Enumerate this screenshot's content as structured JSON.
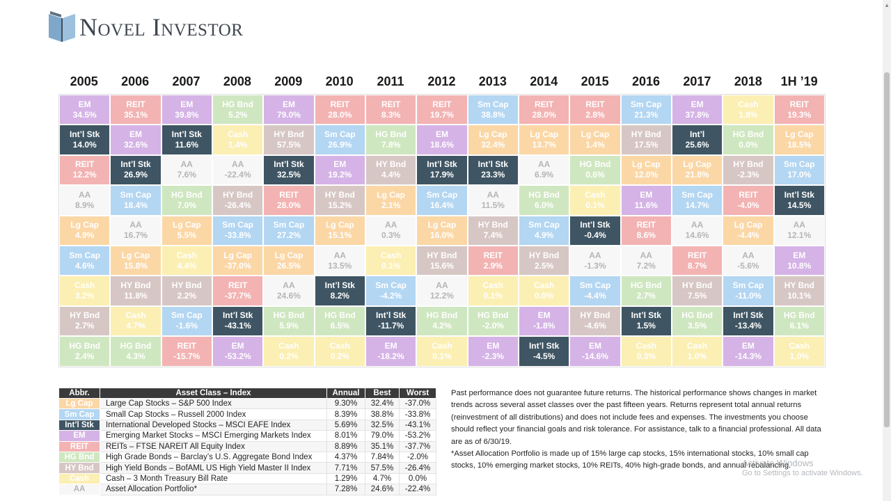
{
  "brand": {
    "name": "Novel Investor"
  },
  "years": [
    "2005",
    "2006",
    "2007",
    "2008",
    "2009",
    "2010",
    "2011",
    "2012",
    "2013",
    "2014",
    "2015",
    "2016",
    "2017",
    "2018",
    "1H ’19"
  ],
  "grid": [
    [
      [
        "EM",
        "34.5%",
        "em"
      ],
      [
        "REIT",
        "35.1%",
        "reit"
      ],
      [
        "EM",
        "39.8%",
        "em"
      ],
      [
        "HG Bnd",
        "5.2%",
        "hg"
      ],
      [
        "EM",
        "79.0%",
        "em"
      ],
      [
        "REIT",
        "28.0%",
        "reit"
      ],
      [
        "REIT",
        "8.3%",
        "reit"
      ],
      [
        "REIT",
        "19.7%",
        "reit"
      ],
      [
        "Sm Cap",
        "38.8%",
        "sm"
      ],
      [
        "REIT",
        "28.0%",
        "reit"
      ],
      [
        "REIT",
        "2.8%",
        "reit"
      ],
      [
        "Sm Cap",
        "21.3%",
        "sm"
      ],
      [
        "EM",
        "37.8%",
        "em"
      ],
      [
        "Cash",
        "1.8%",
        "cash"
      ],
      [
        "REIT",
        "19.3%",
        "reit"
      ]
    ],
    [
      [
        "Int’l Stk",
        "14.0%",
        "intl"
      ],
      [
        "EM",
        "32.6%",
        "em"
      ],
      [
        "Int’l Stk",
        "11.6%",
        "intl"
      ],
      [
        "Cash",
        "1.4%",
        "cash"
      ],
      [
        "HY Bnd",
        "57.5%",
        "hy"
      ],
      [
        "Sm Cap",
        "26.9%",
        "sm"
      ],
      [
        "HG Bnd",
        "7.8%",
        "hg"
      ],
      [
        "EM",
        "18.6%",
        "em"
      ],
      [
        "Lg Cap",
        "32.4%",
        "lg"
      ],
      [
        "Lg Cap",
        "13.7%",
        "lg"
      ],
      [
        "Lg Cap",
        "1.4%",
        "lg"
      ],
      [
        "HY Bnd",
        "17.5%",
        "hy"
      ],
      [
        "Int’l",
        "25.6%",
        "intl"
      ],
      [
        "HG Bnd",
        "0.0%",
        "hg"
      ],
      [
        "Lg Cap",
        "18.5%",
        "lg"
      ]
    ],
    [
      [
        "REIT",
        "12.2%",
        "reit"
      ],
      [
        "Int’l Stk",
        "26.9%",
        "intl"
      ],
      [
        "AA",
        "7.6%",
        "aa"
      ],
      [
        "AA",
        "-22.4%",
        "aa"
      ],
      [
        "Int’l Stk",
        "32.5%",
        "intl"
      ],
      [
        "EM",
        "19.2%",
        "em"
      ],
      [
        "HY Bnd",
        "4.4%",
        "hy"
      ],
      [
        "Int’l Stk",
        "17.9%",
        "intl"
      ],
      [
        "Int’l Stk",
        "23.3%",
        "intl"
      ],
      [
        "AA",
        "6.9%",
        "aa"
      ],
      [
        "HG Bnd",
        "0.6%",
        "hg"
      ],
      [
        "Lg Cap",
        "12.0%",
        "lg"
      ],
      [
        "Lg Cap",
        "21.8%",
        "lg"
      ],
      [
        "HY Bnd",
        "-2.3%",
        "hy"
      ],
      [
        "Sm Cap",
        "17.0%",
        "sm"
      ]
    ],
    [
      [
        "AA",
        "8.9%",
        "aa"
      ],
      [
        "Sm Cap",
        "18.4%",
        "sm"
      ],
      [
        "HG Bnd",
        "7.0%",
        "hg"
      ],
      [
        "HY Bnd",
        "-26.4%",
        "hy"
      ],
      [
        "REIT",
        "28.0%",
        "reit"
      ],
      [
        "HY Bnd",
        "15.2%",
        "hy"
      ],
      [
        "Lg Cap",
        "2.1%",
        "lg"
      ],
      [
        "Sm Cap",
        "16.4%",
        "sm"
      ],
      [
        "AA",
        "11.5%",
        "aa"
      ],
      [
        "HG Bnd",
        "6.0%",
        "hg"
      ],
      [
        "Cash",
        "0.1%",
        "cash"
      ],
      [
        "EM",
        "11.6%",
        "em"
      ],
      [
        "Sm Cap",
        "14.7%",
        "sm"
      ],
      [
        "REIT",
        "-4.0%",
        "reit"
      ],
      [
        "Int’l Stk",
        "14.5%",
        "intl"
      ]
    ],
    [
      [
        "Lg Cap",
        "4.9%",
        "lg"
      ],
      [
        "AA",
        "16.7%",
        "aa"
      ],
      [
        "Lg Cap",
        "5.5%",
        "lg"
      ],
      [
        "Sm Cap",
        "-33.8%",
        "sm"
      ],
      [
        "Sm Cap",
        "27.2%",
        "sm"
      ],
      [
        "Lg Cap",
        "15.1%",
        "lg"
      ],
      [
        "AA",
        "0.3%",
        "aa"
      ],
      [
        "Lg Cap",
        "16.0%",
        "lg"
      ],
      [
        "HY Bnd",
        "7.4%",
        "hy"
      ],
      [
        "Sm Cap",
        "4.9%",
        "sm"
      ],
      [
        "Int’l Stk",
        "-0.4%",
        "intl"
      ],
      [
        "REIT",
        "8.6%",
        "reit"
      ],
      [
        "AA",
        "14.6%",
        "aa"
      ],
      [
        "Lg Cap",
        "-4.4%",
        "lg"
      ],
      [
        "AA",
        "12.1%",
        "aa"
      ]
    ],
    [
      [
        "Sm Cap",
        "4.6%",
        "sm"
      ],
      [
        "Lg Cap",
        "15.8%",
        "lg"
      ],
      [
        "Cash",
        "4.4%",
        "cash"
      ],
      [
        "Lg Cap",
        "-37.0%",
        "lg"
      ],
      [
        "Lg Cap",
        "26.5%",
        "lg"
      ],
      [
        "AA",
        "13.5%",
        "aa"
      ],
      [
        "Cash",
        "0.1%",
        "cash"
      ],
      [
        "HY Bnd",
        "15.6%",
        "hy"
      ],
      [
        "REIT",
        "2.9%",
        "reit"
      ],
      [
        "HY Bnd",
        "2.5%",
        "hy"
      ],
      [
        "AA",
        "-1.3%",
        "aa"
      ],
      [
        "AA",
        "7.2%",
        "aa"
      ],
      [
        "REIT",
        "8.7%",
        "reit"
      ],
      [
        "AA",
        "-5.6%",
        "aa"
      ],
      [
        "EM",
        "10.8%",
        "em"
      ]
    ],
    [
      [
        "Cash",
        "3.2%",
        "cash"
      ],
      [
        "HY Bnd",
        "11.8%",
        "hy"
      ],
      [
        "HY Bnd",
        "2.2%",
        "hy"
      ],
      [
        "REIT",
        "-37.7%",
        "reit"
      ],
      [
        "AA",
        "24.6%",
        "aa"
      ],
      [
        "Int’l Stk",
        "8.2%",
        "intl"
      ],
      [
        "Sm Cap",
        "-4.2%",
        "sm"
      ],
      [
        "AA",
        "12.2%",
        "aa"
      ],
      [
        "Cash",
        "0.1%",
        "cash"
      ],
      [
        "Cash",
        "0.0%",
        "cash"
      ],
      [
        "Sm Cap",
        "-4.4%",
        "sm"
      ],
      [
        "HG Bnd",
        "2.7%",
        "hg"
      ],
      [
        "HY Bnd",
        "7.5%",
        "hy"
      ],
      [
        "Sm Cap",
        "-11.0%",
        "sm"
      ],
      [
        "HY Bnd",
        "10.1%",
        "hy"
      ]
    ],
    [
      [
        "HY Bnd",
        "2.7%",
        "hy"
      ],
      [
        "Cash",
        "4.7%",
        "cash"
      ],
      [
        "Sm Cap",
        "-1.6%",
        "sm"
      ],
      [
        "Int’l Stk",
        "-43.1%",
        "intl"
      ],
      [
        "HG Bnd",
        "5.9%",
        "hg"
      ],
      [
        "HG Bnd",
        "6.5%",
        "hg"
      ],
      [
        "Int’l Stk",
        "-11.7%",
        "intl"
      ],
      [
        "HG Bnd",
        "4.2%",
        "hg"
      ],
      [
        "HG Bnd",
        "-2.0%",
        "hg"
      ],
      [
        "EM",
        "-1.8%",
        "em"
      ],
      [
        "HY Bnd",
        "-4.6%",
        "hy"
      ],
      [
        "Int’l Stk",
        "1.5%",
        "intl"
      ],
      [
        "HG Bnd",
        "3.5%",
        "hg"
      ],
      [
        "Int’l Stk",
        "-13.4%",
        "intl"
      ],
      [
        "HG Bnd",
        "6.1%",
        "hg"
      ]
    ],
    [
      [
        "HG Bnd",
        "2.4%",
        "hg"
      ],
      [
        "HG Bnd",
        "4.3%",
        "hg"
      ],
      [
        "REIT",
        "-15.7%",
        "reit"
      ],
      [
        "EM",
        "-53.2%",
        "em"
      ],
      [
        "Cash",
        "0.2%",
        "cash"
      ],
      [
        "Cash",
        "0.2%",
        "cash"
      ],
      [
        "EM",
        "-18.2%",
        "em"
      ],
      [
        "Cash",
        "0.1%",
        "cash"
      ],
      [
        "EM",
        "-2.3%",
        "em"
      ],
      [
        "Int’l Stk",
        "-4.5%",
        "intl"
      ],
      [
        "EM",
        "-14.6%",
        "em"
      ],
      [
        "Cash",
        "0.3%",
        "cash"
      ],
      [
        "Cash",
        "1.0%",
        "cash"
      ],
      [
        "EM",
        "-14.3%",
        "em"
      ],
      [
        "Cash",
        "1.0%",
        "cash"
      ]
    ]
  ],
  "legend": {
    "headers": [
      "Abbr.",
      "Asset Class – Index",
      "Annual",
      "Best",
      "Worst"
    ],
    "rows": [
      [
        "Lg Cap",
        "Large Cap Stocks – S&P 500 Index",
        "9.30%",
        "32.4%",
        "-37.0%",
        "lg"
      ],
      [
        "Sm Cap",
        "Small Cap Stocks – Russell 2000 Index",
        "8.39%",
        "38.8%",
        "-33.8%",
        "sm"
      ],
      [
        "Int’l Stk",
        "International Developed Stocks – MSCI EAFE Index",
        "5.69%",
        "32.5%",
        "-43.1%",
        "intl"
      ],
      [
        "EM",
        "Emerging Market Stocks – MSCI Emerging Markets Index",
        "8.01%",
        "79.0%",
        "-53.2%",
        "em"
      ],
      [
        "REIT",
        "REITs – FTSE NAREIT All Equity Index",
        "8.89%",
        "35.1%",
        "-37.7%",
        "reit"
      ],
      [
        "HG Bnd",
        "High Grade Bonds – Barclay’s U.S. Aggregate Bond Index",
        "4.37%",
        "7.84%",
        "-2.0%",
        "hg"
      ],
      [
        "HY Bnd",
        "High Yield Bonds – BofAML US High Yield Master II Index",
        "7.71%",
        "57.5%",
        "-26.4%",
        "hy"
      ],
      [
        "Cash",
        "Cash – 3 Month Treasury Bill Rate",
        "1.29%",
        "4.7%",
        "0.0%",
        "cash"
      ],
      [
        "AA",
        "Asset Allocation Portfolio*",
        "7.28%",
        "24.6%",
        "-22.4%",
        "aa"
      ]
    ]
  },
  "notes": {
    "paragraph1": "Past performance does not guarantee future returns. The historical performance shows changes in market trends across several asset classes over the past fifteen years. Returns represent total annual returns (reinvestment of all distributions) and does not include fees and expenses. The investments you choose should reflect your financial goals and risk tolerance. For assistance, talk to a financial professional. All data are as of 6/30/19.",
    "paragraph2": "*Asset Allocation Portfolio is made up of 15% large cap stocks, 15% international stocks, 10% small cap stocks, 10% emerging market stocks, 10% REITs, 40% high-grade bonds, and annual rebalancing."
  },
  "watermark": {
    "line1": "Activate Windows",
    "line2": "Go to Settings to activate Windows."
  },
  "colors": {
    "em": "#d5b3e6",
    "reit": "#f3b3b3",
    "sm": "#b3d6f2",
    "hg": "#cfe7c0",
    "cash": "#fcefb3",
    "intl": "#3f5563",
    "lg": "#fbd7a6",
    "hy": "#d7c7c4",
    "aa": "#f7f7f7"
  }
}
